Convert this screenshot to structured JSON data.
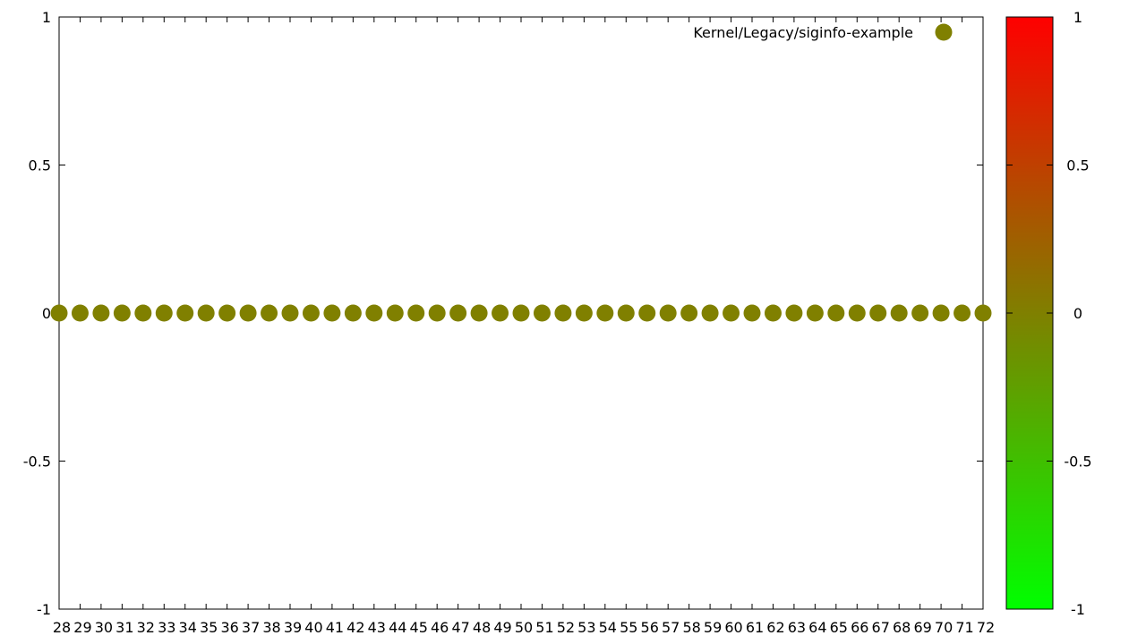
{
  "chart_data": {
    "type": "scatter",
    "title": "",
    "xlabel": "",
    "ylabel": "",
    "xlim": [
      28,
      72
    ],
    "ylim": [
      -1,
      1
    ],
    "x_ticks": [
      28,
      29,
      30,
      31,
      32,
      33,
      34,
      35,
      36,
      37,
      38,
      39,
      40,
      41,
      42,
      43,
      44,
      45,
      46,
      47,
      48,
      49,
      50,
      51,
      52,
      53,
      54,
      55,
      56,
      57,
      58,
      59,
      60,
      61,
      62,
      63,
      64,
      65,
      66,
      67,
      68,
      69,
      70,
      71,
      72
    ],
    "y_ticks": [
      -1,
      -0.5,
      0,
      0.5,
      1
    ],
    "y_tick_labels": [
      "-1",
      "-0.5",
      "0",
      "0.5",
      "1"
    ],
    "grid": false,
    "legend": {
      "placement": "top-right"
    },
    "series": [
      {
        "name": "Kernel/Legacy/siginfo-example",
        "color": "#808000",
        "x": [
          28,
          29,
          30,
          31,
          32,
          33,
          34,
          35,
          36,
          37,
          38,
          39,
          40,
          41,
          42,
          43,
          44,
          45,
          46,
          47,
          48,
          49,
          50,
          51,
          52,
          53,
          54,
          55,
          56,
          57,
          58,
          59,
          60,
          61,
          62,
          63,
          64,
          65,
          66,
          67,
          68,
          69,
          70,
          71,
          72
        ],
        "y": [
          0,
          0,
          0,
          0,
          0,
          0,
          0,
          0,
          0,
          0,
          0,
          0,
          0,
          0,
          0,
          0,
          0,
          0,
          0,
          0,
          0,
          0,
          0,
          0,
          0,
          0,
          0,
          0,
          0,
          0,
          0,
          0,
          0,
          0,
          0,
          0,
          0,
          0,
          0,
          0,
          0,
          0,
          0,
          0,
          0
        ]
      }
    ],
    "colorbar": {
      "range": [
        -1,
        1
      ],
      "ticks": [
        -1,
        -0.5,
        0,
        0.5,
        1
      ],
      "tick_labels": [
        "-1",
        "-0.5",
        "0",
        "0.5",
        "1"
      ],
      "color_low": "#00ff00",
      "color_high": "#ff0000"
    }
  }
}
